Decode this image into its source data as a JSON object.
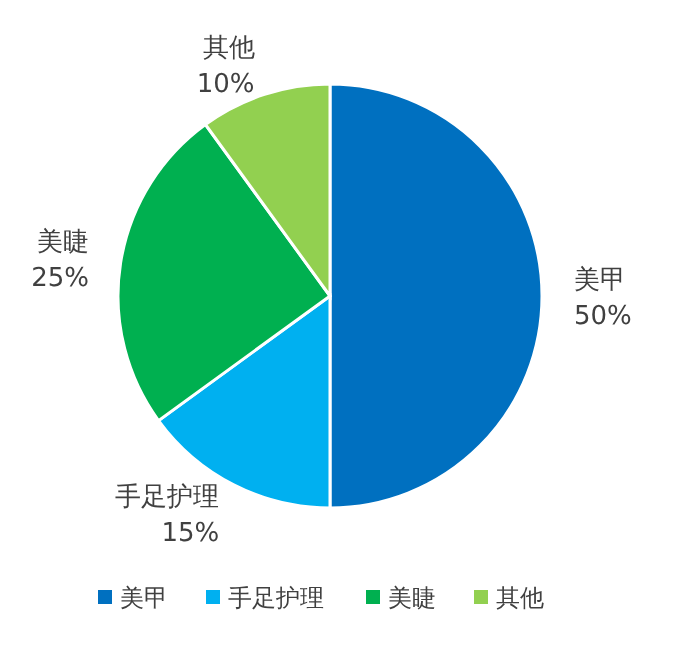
{
  "chart_data": {
    "type": "pie",
    "categories": [
      "美甲",
      "手足护理",
      "美睫",
      "其他"
    ],
    "values": [
      50,
      15,
      25,
      10
    ],
    "value_labels": [
      "50%",
      "15%",
      "25%",
      "10%"
    ],
    "colors": [
      "#0070c0",
      "#00b0f0",
      "#00b050",
      "#92d050"
    ],
    "legend": "bottom"
  }
}
